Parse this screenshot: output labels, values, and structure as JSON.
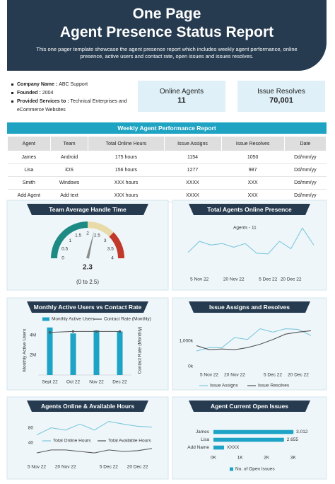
{
  "header": {
    "title": [
      "One Page",
      "Agent Presence Status Report"
    ],
    "subtitle": "This one pager template showcase the agent presence report which includes weekly agent performance, online presence, active users and contact rate, open issues and issues resolves."
  },
  "company": [
    {
      "label": "Company Name :",
      "value": "ABC Support"
    },
    {
      "label": "Founded :",
      "value": "2004"
    },
    {
      "label": "Provided Services to :",
      "value": "Technical Enterprises and eCommerce Websites"
    }
  ],
  "kpis": [
    {
      "label": "Online Agents",
      "value": "11"
    },
    {
      "label": "Issue Resolves",
      "value": "70,001"
    }
  ],
  "table": {
    "title": "Weekly Agent Performance Report",
    "columns": [
      "Agent",
      "Team",
      "Total Online Hours",
      "Issue Assigns",
      "Issue Resolves",
      "Date"
    ],
    "rows": [
      [
        "James",
        "Android",
        "175 hours",
        "1154",
        "1050",
        "Dd/mm/yy"
      ],
      [
        "Lisa",
        "iOS",
        "156 hours",
        "1277",
        "987",
        "Dd/mm/yy"
      ],
      [
        "Smith",
        "Windows",
        "XXX hours",
        "XXXX",
        "XXX",
        "Dd/mm/yy"
      ],
      [
        "Add Agent",
        "Add text",
        "XXX hours",
        "XXXX",
        "XXX",
        "Dd/mm/yy"
      ]
    ]
  },
  "chart_data": [
    {
      "type": "gauge",
      "title": "Team Average Handle Time",
      "value": 2.3,
      "annotation": "(0 to 2.5)",
      "ylim": [
        0,
        4
      ],
      "yticks": [
        0,
        0.5,
        1,
        1.5,
        2,
        2.5,
        3,
        3.5,
        4
      ],
      "bands": [
        {
          "from": 0,
          "to": 2,
          "color": "#1e8a84"
        },
        {
          "from": 2,
          "to": 3,
          "color": "#e9dba9"
        },
        {
          "from": 3,
          "to": 4,
          "color": "#c0392b"
        }
      ],
      "needle_color": "#8a8a8a"
    },
    {
      "type": "line",
      "title": "Total Agents Online Presence",
      "categories": [
        null,
        "5 Nov 22",
        null,
        null,
        "20 Nov 22",
        null,
        null,
        "5 Dec 22",
        null,
        "20 Dec 22",
        null,
        null
      ],
      "ylim": [
        0,
        42
      ],
      "series": [
        {
          "name": "Agents - 11",
          "color": "#7ec8dc",
          "values": [
            5,
            20,
            15,
            17,
            12,
            17,
            4,
            3,
            20,
            10,
            38,
            15
          ]
        }
      ]
    },
    {
      "type": "bar",
      "title": "Monthly Active Users vs Contact Rate",
      "categories": [
        "Sept 22",
        "Oct 22",
        "Nov 22",
        "Dec 22"
      ],
      "y_label": "Monthly Active Users",
      "y2_label": "Contact Rate (Monthly)",
      "ylim": [
        0,
        5000000
      ],
      "yticks": [
        {
          "value": 2000000,
          "label": "2M"
        },
        {
          "value": 4000000,
          "label": "4M"
        }
      ],
      "y2lim": [
        0,
        5
      ],
      "series": [
        {
          "name": "Monthly Active Users",
          "color": "#1ca3c6",
          "values": [
            4800000,
            4200000,
            4500000,
            4400000
          ]
        },
        {
          "name": "Contact Rate (Monthly)",
          "color": "#555555",
          "axis": "y2",
          "values": [
            4.3,
            4.4,
            4.4,
            4.4
          ]
        }
      ]
    },
    {
      "type": "line",
      "title": "Issue Assigns and Resolves",
      "categories": [
        null,
        "5 Nov 22",
        null,
        "20 Nov 22",
        null,
        null,
        "5 Dec 22",
        null,
        "20 Dec 22",
        null
      ],
      "ylim": [
        0,
        1600000
      ],
      "yticks": [
        {
          "value": 0,
          "label": "0k"
        },
        {
          "value": 1000000,
          "label": "1,000k"
        }
      ],
      "series": [
        {
          "name": "Issue Assigns",
          "color": "#7ec8dc",
          "values": [
            605000,
            737000,
            737000,
            1132000,
            1053000,
            1474000,
            1342000,
            1474000,
            1447000,
            1211000
          ]
        },
        {
          "name": "Issue Resolves",
          "color": "#555555",
          "values": [
            816000,
            658000,
            684000,
            658000,
            737000,
            868000,
            1053000,
            1263000,
            1342000,
            1395000
          ]
        }
      ]
    },
    {
      "type": "line",
      "title": "Agents Online & Available Hours",
      "categories": [
        "5 Nov 22",
        null,
        "20 Nov 22",
        null,
        null,
        "5 Dec 22",
        null,
        "20 Dec 22",
        null
      ],
      "ylim": [
        0,
        100
      ],
      "yticks": [
        40,
        80
      ],
      "series": [
        {
          "name": "Total Online Hours",
          "color": "#7ec8dc",
          "values": [
            61,
            80,
            74,
            90,
            74,
            97,
            90,
            84,
            82
          ]
        },
        {
          "name": "Total Available Hours",
          "color": "#555555",
          "values": [
            13,
            21,
            21,
            17,
            13,
            21,
            17,
            19,
            25
          ]
        }
      ]
    },
    {
      "type": "hbar",
      "title": "Agent Current Open Issues",
      "categories": [
        "James",
        "Lisa",
        "Add Name"
      ],
      "xlim": [
        0,
        3.3
      ],
      "xticks": [
        {
          "value": 0,
          "label": "0K"
        },
        {
          "value": 1,
          "label": "1K"
        },
        {
          "value": 2,
          "label": "2K"
        },
        {
          "value": 3,
          "label": "3K"
        }
      ],
      "series": [
        {
          "name": "No. of Open Issues",
          "color": "#1ca3c6",
          "values": [
            3.012,
            2.655,
            0.4
          ],
          "value_labels": [
            "3.012",
            "2.655",
            "XXXX"
          ]
        }
      ]
    }
  ]
}
